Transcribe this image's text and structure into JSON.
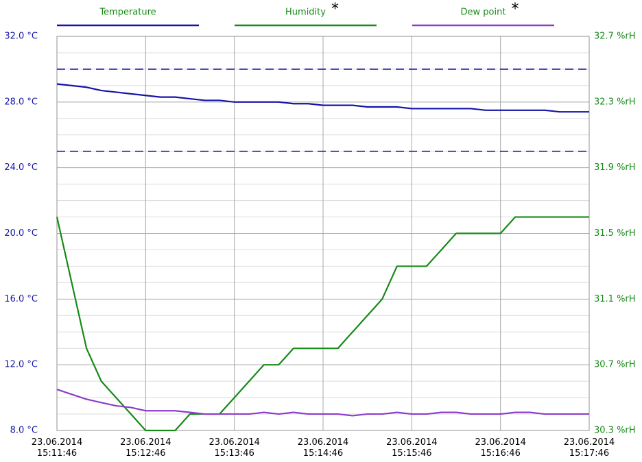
{
  "chart_data": {
    "type": "line",
    "x": [
      "23.06.2014 15:11:46",
      "23.06.2014 15:11:56",
      "23.06.2014 15:12:06",
      "23.06.2014 15:12:16",
      "23.06.2014 15:12:26",
      "23.06.2014 15:12:36",
      "23.06.2014 15:12:46",
      "23.06.2014 15:12:56",
      "23.06.2014 15:13:06",
      "23.06.2014 15:13:16",
      "23.06.2014 15:13:26",
      "23.06.2014 15:13:36",
      "23.06.2014 15:13:46",
      "23.06.2014 15:13:56",
      "23.06.2014 15:14:06",
      "23.06.2014 15:14:16",
      "23.06.2014 15:14:26",
      "23.06.2014 15:14:36",
      "23.06.2014 15:14:46",
      "23.06.2014 15:14:56",
      "23.06.2014 15:15:06",
      "23.06.2014 15:15:16",
      "23.06.2014 15:15:26",
      "23.06.2014 15:15:36",
      "23.06.2014 15:15:46",
      "23.06.2014 15:15:56",
      "23.06.2014 15:16:06",
      "23.06.2014 15:16:16",
      "23.06.2014 15:16:26",
      "23.06.2014 15:16:36",
      "23.06.2014 15:16:46",
      "23.06.2014 15:16:56",
      "23.06.2014 15:17:06",
      "23.06.2014 15:17:16",
      "23.06.2014 15:17:26",
      "23.06.2014 15:17:36",
      "23.06.2014 15:17:46"
    ],
    "xlim": [
      "23.06.2014 15:11:46",
      "23.06.2014 15:17:46"
    ],
    "xticks": [
      "23.06.2014 15:11:46",
      "23.06.2014 15:12:46",
      "23.06.2014 15:13:46",
      "23.06.2014 15:14:46",
      "23.06.2014 15:15:46",
      "23.06.2014 15:16:46",
      "23.06.2014 15:17:46"
    ],
    "ylim": [
      8,
      32
    ],
    "yticks": [
      {
        "value": 8,
        "label": "8.0 °C"
      },
      {
        "value": 12,
        "label": "12.0 °C"
      },
      {
        "value": 16,
        "label": "16.0 °C"
      },
      {
        "value": 20,
        "label": "20.0 °C"
      },
      {
        "value": 24,
        "label": "24.0 °C"
      },
      {
        "value": 28,
        "label": "28.0 °C"
      },
      {
        "value": 32,
        "label": "32.0 °C"
      }
    ],
    "yminorticks": [
      9,
      10,
      11,
      13,
      14,
      15,
      17,
      18,
      19,
      21,
      22,
      23,
      25,
      26,
      27,
      29,
      30,
      31
    ],
    "y2lim": [
      30.3,
      32.7
    ],
    "y2ticks": [
      {
        "value": 30.3,
        "label": "30.3 %rH"
      },
      {
        "value": 30.7,
        "label": "30.7 %rH"
      },
      {
        "value": 31.1,
        "label": "31.1 %rH"
      },
      {
        "value": 31.5,
        "label": "31.5 %rH"
      },
      {
        "value": 31.9,
        "label": "31.9 %rH"
      },
      {
        "value": 32.3,
        "label": "32.3 %rH"
      },
      {
        "value": 32.7,
        "label": "32.7 %rH"
      }
    ],
    "grid": true,
    "thresholds": [
      30,
      25
    ],
    "series": [
      {
        "name": "Temperature",
        "color": "#1414a8",
        "values": [
          29.1,
          29.0,
          28.9,
          28.7,
          28.6,
          28.5,
          28.4,
          28.3,
          28.3,
          28.2,
          28.1,
          28.1,
          28.0,
          28.0,
          28.0,
          28.0,
          27.9,
          27.9,
          27.8,
          27.8,
          27.8,
          27.7,
          27.7,
          27.7,
          27.6,
          27.6,
          27.6,
          27.6,
          27.6,
          27.5,
          27.5,
          27.5,
          27.5,
          27.5,
          27.4,
          27.4,
          27.4
        ]
      },
      {
        "name": "Humidity",
        "note": "*",
        "color": "#168a16",
        "axis": "y2",
        "values": [
          31.6,
          31.2,
          30.8,
          30.6,
          30.5,
          30.4,
          30.3,
          30.3,
          30.3,
          30.4,
          30.4,
          30.4,
          30.5,
          30.6,
          30.7,
          30.7,
          30.8,
          30.8,
          30.8,
          30.8,
          30.9,
          31.0,
          31.1,
          31.3,
          31.3,
          31.3,
          31.4,
          31.5,
          31.5,
          31.5,
          31.5,
          31.6,
          31.6,
          31.6,
          31.6,
          31.6,
          31.6
        ]
      },
      {
        "name": "Dew point",
        "note": "*",
        "color": "#8c3ccc",
        "values": [
          10.5,
          10.2,
          9.9,
          9.7,
          9.5,
          9.4,
          9.2,
          9.2,
          9.2,
          9.1,
          9.0,
          9.0,
          9.0,
          9.0,
          9.1,
          9.0,
          9.1,
          9.0,
          9.0,
          9.0,
          8.9,
          9.0,
          9.0,
          9.1,
          9.0,
          9.0,
          9.1,
          9.1,
          9.0,
          9.0,
          9.0,
          9.1,
          9.1,
          9.0,
          9.0,
          9.0,
          9.0
        ]
      }
    ]
  }
}
